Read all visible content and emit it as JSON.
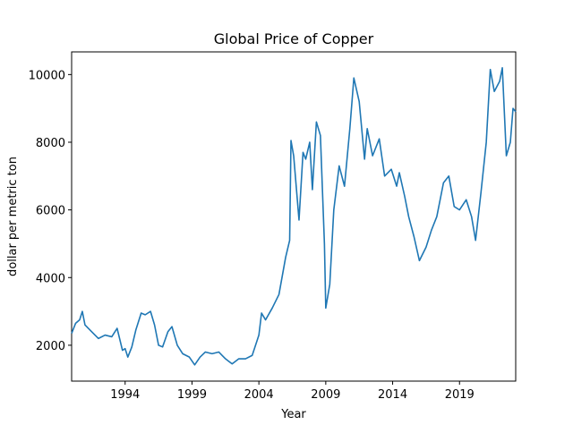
{
  "chart_data": {
    "type": "line",
    "title": "Global Price of Copper",
    "x_label": "Year",
    "y_label": "dollar per metric ton",
    "x": [
      1990.0,
      1990.3,
      1990.6,
      1990.8,
      1991.0,
      1991.5,
      1992.0,
      1992.5,
      1993.0,
      1993.4,
      1993.8,
      1994.0,
      1994.2,
      1994.5,
      1994.8,
      1995.2,
      1995.5,
      1995.9,
      1996.2,
      1996.5,
      1996.8,
      1997.2,
      1997.5,
      1997.9,
      1998.3,
      1998.8,
      1999.2,
      1999.6,
      2000.0,
      2000.5,
      2001.0,
      2001.5,
      2002.0,
      2002.5,
      2003.0,
      2003.5,
      2004.0,
      2004.2,
      2004.5,
      2005.0,
      2005.5,
      2006.0,
      2006.3,
      2006.4,
      2006.6,
      2007.0,
      2007.3,
      2007.5,
      2007.8,
      2008.0,
      2008.3,
      2008.6,
      2008.9,
      2009.0,
      2009.3,
      2009.6,
      2010.0,
      2010.4,
      2010.8,
      2011.1,
      2011.5,
      2011.9,
      2012.1,
      2012.5,
      2013.0,
      2013.4,
      2013.9,
      2014.3,
      2014.5,
      2014.9,
      2015.2,
      2015.6,
      2016.0,
      2016.5,
      2016.9,
      2017.3,
      2017.8,
      2018.2,
      2018.6,
      2019.0,
      2019.5,
      2019.9,
      2020.2,
      2020.6,
      2021.0,
      2021.3,
      2021.6,
      2022.0,
      2022.2,
      2022.5,
      2022.8,
      2023.0,
      2023.2
    ],
    "series": [
      {
        "name": "Copper",
        "color": "#1f77b4",
        "values": [
          2350,
          2650,
          2750,
          3000,
          2600,
          2400,
          2200,
          2300,
          2250,
          2500,
          1850,
          1900,
          1650,
          1950,
          2450,
          2950,
          2900,
          3000,
          2600,
          2000,
          1950,
          2400,
          2550,
          2000,
          1750,
          1650,
          1420,
          1650,
          1800,
          1750,
          1800,
          1600,
          1450,
          1600,
          1600,
          1700,
          2300,
          2950,
          2750,
          3100,
          3500,
          4600,
          5100,
          8050,
          7600,
          5700,
          7700,
          7500,
          8000,
          6600,
          8600,
          8200,
          5000,
          3100,
          3800,
          6000,
          7300,
          6700,
          8400,
          9900,
          9200,
          7500,
          8400,
          7600,
          8100,
          7000,
          7200,
          6700,
          7100,
          6400,
          5800,
          5200,
          4500,
          4900,
          5400,
          5800,
          6800,
          7000,
          6100,
          6000,
          6300,
          5800,
          5100,
          6500,
          8000,
          10150,
          9500,
          9800,
          10200,
          7600,
          8000,
          9000,
          8900
        ]
      }
    ],
    "xlim": [
      1990.0,
      2023.2
    ],
    "ylim": [
      940,
      10670
    ],
    "xticks": [
      1994,
      1999,
      2004,
      2009,
      2014,
      2019
    ],
    "yticks": [
      2000,
      4000,
      6000,
      8000,
      10000
    ]
  }
}
